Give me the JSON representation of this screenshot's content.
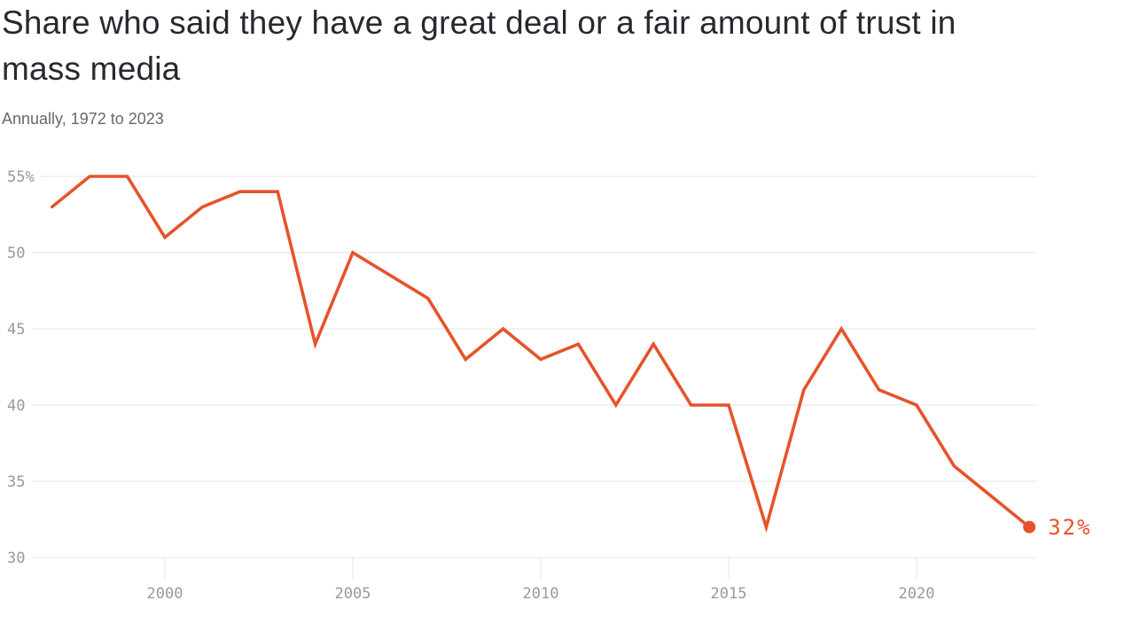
{
  "header": {
    "title": "Share who said they have a great deal or a fair amount of trust in mass media",
    "subtitle": "Annually, 1972 to 2023"
  },
  "colors": {
    "background": "#FFFFFF",
    "title_text": "#26292E",
    "subtitle_text": "#67696D",
    "axis_text": "#96999D",
    "gridline": "#E4E5E7",
    "line": "#E6532B"
  },
  "chart_data": {
    "type": "line",
    "title": "Share who said they have a great deal or a fair amount of trust in mass media",
    "subtitle": "Annually, 1972 to 2023",
    "series": [
      {
        "name": "Share with a great deal or a fair amount of trust in mass media (%)",
        "x": [
          1997,
          1998,
          1999,
          2000,
          2001,
          2002,
          2003,
          2004,
          2005,
          2006,
          2007,
          2008,
          2009,
          2010,
          2011,
          2012,
          2013,
          2014,
          2015,
          2016,
          2017,
          2018,
          2019,
          2020,
          2021,
          2022,
          2023
        ],
        "values": [
          53,
          55,
          55,
          51,
          53,
          54,
          54,
          44,
          50,
          null,
          47,
          43,
          45,
          43,
          44,
          40,
          44,
          40,
          40,
          32,
          41,
          45,
          41,
          40,
          36,
          34,
          32
        ]
      }
    ],
    "x_ticks": [
      2000,
      2005,
      2010,
      2015,
      2020
    ],
    "y_ticks": [
      {
        "value": 55,
        "label": "55%"
      },
      {
        "value": 50,
        "label": "50"
      },
      {
        "value": 45,
        "label": "45"
      },
      {
        "value": 40,
        "label": "40"
      },
      {
        "value": 35,
        "label": "35"
      },
      {
        "value": 30,
        "label": "30"
      }
    ],
    "xlim": [
      1997,
      2023
    ],
    "ylim": [
      30,
      55
    ],
    "grid": "horizontal",
    "legend": "none",
    "end_label": "32%",
    "end_value": 32
  }
}
